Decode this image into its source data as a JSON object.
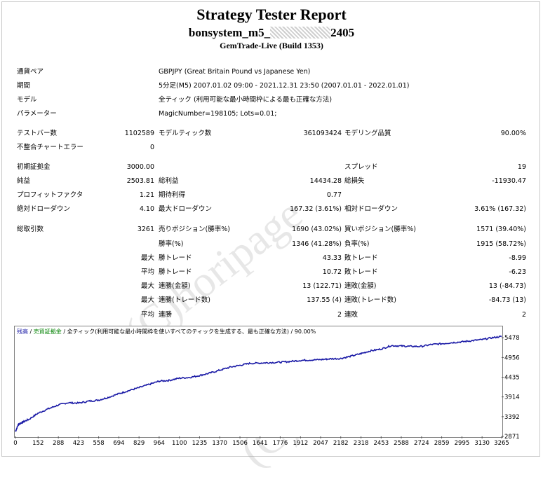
{
  "report": {
    "title": "Strategy Tester Report",
    "subtitle_prefix": "bonsystem_m5_",
    "subtitle_suffix": "2405",
    "build": "GemTrade-Live (Build 1353)"
  },
  "info": {
    "pair_label": "通貨ペア",
    "pair_value": "GBPJPY (Great Britain Pound vs Japanese Yen)",
    "period_label": "期間",
    "period_value": "5分足(M5) 2007.01.02 09:00 - 2021.12.31 23:50 (2007.01.01 - 2022.01.01)",
    "model_label": "モデル",
    "model_value": "全ティック (利用可能な最小時間枠による最も正確な方法)",
    "params_label": "パラメーター",
    "params_value": "MagicNumber=198105; Lots=0.01;"
  },
  "stats": {
    "bars_label": "テストバー数",
    "bars_value": "1102589",
    "ticks_label": "モデルティック数",
    "ticks_value": "361093424",
    "quality_label": "モデリング品質",
    "quality_value": "90.00%",
    "mismatch_label": "不整合チャートエラー",
    "mismatch_value": "0",
    "deposit_label": "初期証拠金",
    "deposit_value": "3000.00",
    "spread_label": "スプレッド",
    "spread_value": "19",
    "net_label": "純益",
    "net_value": "2503.81",
    "gross_profit_label": "総利益",
    "gross_profit_value": "14434.28",
    "gross_loss_label": "総損失",
    "gross_loss_value": "-11930.47",
    "pf_label": "プロフィットファクタ",
    "pf_value": "1.21",
    "expected_label": "期待利得",
    "expected_value": "0.77",
    "abs_dd_label": "絶対ドローダウン",
    "abs_dd_value": "4.10",
    "max_dd_label": "最大ドローダウン",
    "max_dd_value": "167.32 (3.61%)",
    "rel_dd_label": "相対ドローダウン",
    "rel_dd_value": "3.61% (167.32)",
    "total_trades_label": "総取引数",
    "total_trades_value": "3261",
    "short_label": "売りポジション(勝率%)",
    "short_value": "1690 (43.02%)",
    "long_label": "買いポジション(勝率%)",
    "long_value": "1571 (39.40%)",
    "win_rate_label": "勝率(%)",
    "win_rate_value": "1346 (41.28%)",
    "loss_rate_label": "負率(%)",
    "loss_rate_value": "1915 (58.72%)",
    "max_word": "最大",
    "avg_word": "平均",
    "max_win_label": "勝トレード",
    "max_win_value": "43.33",
    "max_loss_label": "敗トレード",
    "max_loss_value": "-8.99",
    "avg_win_label": "勝トレード",
    "avg_win_value": "10.72",
    "avg_loss_label": "敗トレード",
    "avg_loss_value": "-6.23",
    "consec_win_amt_label": "連勝(金額)",
    "consec_win_amt_value": "13 (122.71)",
    "consec_loss_amt_label": "連敗(金額)",
    "consec_loss_amt_value": "13 (-84.73)",
    "consec_win_cnt_label": "連勝(トレード数)",
    "consec_win_cnt_value": "137.55 (4)",
    "consec_loss_cnt_label": "連敗(トレード数)",
    "consec_loss_cnt_value": "-84.73 (13)",
    "avg_consec_win_label": "連勝",
    "avg_consec_win_value": "2",
    "avg_consec_loss_label": "連敗",
    "avg_consec_loss_value": "2"
  },
  "watermark": {
    "line1": "(C)horipage",
    "line2": "(C)horipage"
  },
  "chart_data": {
    "type": "line",
    "legend_balance": "残高",
    "legend_lot": "売買証拠金",
    "legend_model": "全ティック(利用可能な最小時間枠を使いすべてのティックを生成する、最も正確な方法)",
    "legend_quality": "90.00%",
    "x_ticks": [
      0,
      152,
      288,
      423,
      558,
      694,
      829,
      964,
      1100,
      1235,
      1370,
      1506,
      1641,
      1776,
      1912,
      2047,
      2182,
      2318,
      2453,
      2588,
      2724,
      2859,
      2995,
      3130,
      3265
    ],
    "y_ticks": [
      2871,
      3392,
      3914,
      4435,
      4956,
      5478
    ],
    "xlim": [
      0,
      3261
    ],
    "ylim": [
      2871,
      5556
    ],
    "series": [
      {
        "color": "#1a1aa6",
        "x": [
          0,
          20,
          50,
          90,
          150,
          220,
          288,
          350,
          423,
          490,
          558,
          620,
          694,
          760,
          829,
          900,
          964,
          1030,
          1100,
          1170,
          1235,
          1300,
          1370,
          1440,
          1506,
          1570,
          1641,
          1700,
          1776,
          1840,
          1912,
          1980,
          2047,
          2110,
          2182,
          2250,
          2318,
          2380,
          2453,
          2520,
          2588,
          2650,
          2724,
          2790,
          2859,
          2930,
          2995,
          3060,
          3130,
          3200,
          3261
        ],
        "y": [
          3000,
          3190,
          3250,
          3320,
          3480,
          3600,
          3700,
          3760,
          3750,
          3800,
          3830,
          3900,
          4000,
          4080,
          4160,
          4250,
          4330,
          4350,
          4410,
          4430,
          4480,
          4540,
          4620,
          4700,
          4750,
          4800,
          4810,
          4820,
          4830,
          4850,
          4880,
          4890,
          4900,
          4920,
          4930,
          4990,
          5060,
          5130,
          5180,
          5270,
          5260,
          5250,
          5250,
          5300,
          5320,
          5350,
          5370,
          5400,
          5430,
          5480,
          5510
        ]
      }
    ]
  }
}
